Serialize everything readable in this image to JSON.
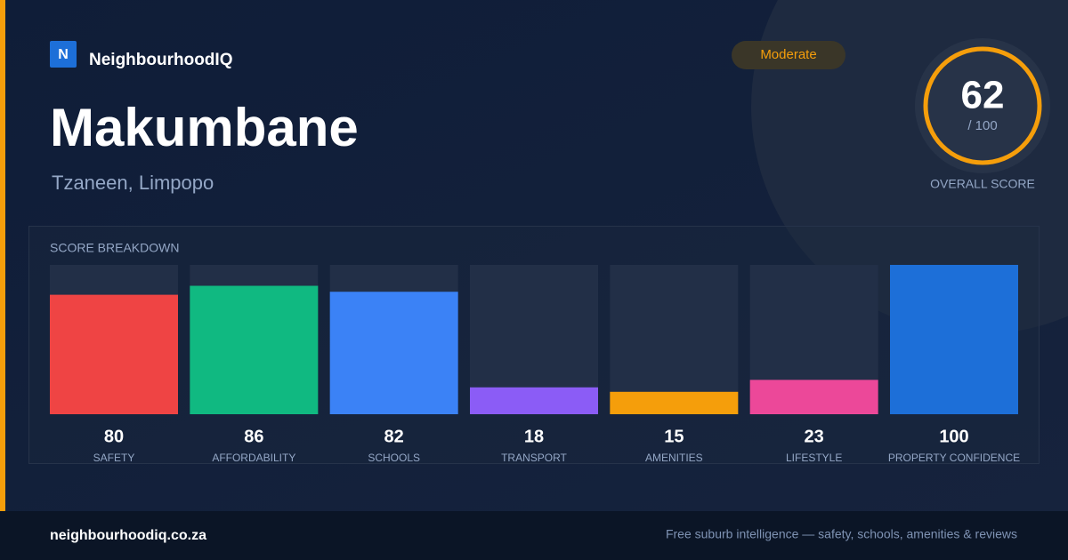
{
  "brand": {
    "logo_letter": "N",
    "name": "NeighbourhoodIQ"
  },
  "suburb": "Makumbane",
  "location": "Tzaneen, Limpopo",
  "badge": "Moderate",
  "score": {
    "value": "62",
    "max_label": "/ 100",
    "label": "OVERALL SCORE"
  },
  "chart_data": {
    "type": "bar",
    "title": "SCORE BREAKDOWN",
    "categories": [
      "SAFETY",
      "AFFORDABILITY",
      "SCHOOLS",
      "TRANSPORT",
      "AMENITIES",
      "LIFESTYLE",
      "PROPERTY CONFIDENCE"
    ],
    "values": [
      80,
      86,
      82,
      18,
      15,
      23,
      100
    ],
    "colors": [
      "#ef4444",
      "#10b981",
      "#3b82f6",
      "#8b5cf6",
      "#f59e0b",
      "#ec4899",
      "#1d6fd8"
    ],
    "ylim": [
      0,
      100
    ]
  },
  "footer": {
    "url": "neighbourhoodiq.co.za",
    "tagline": "Free suburb intelligence — safety, schools, amenities & reviews"
  }
}
